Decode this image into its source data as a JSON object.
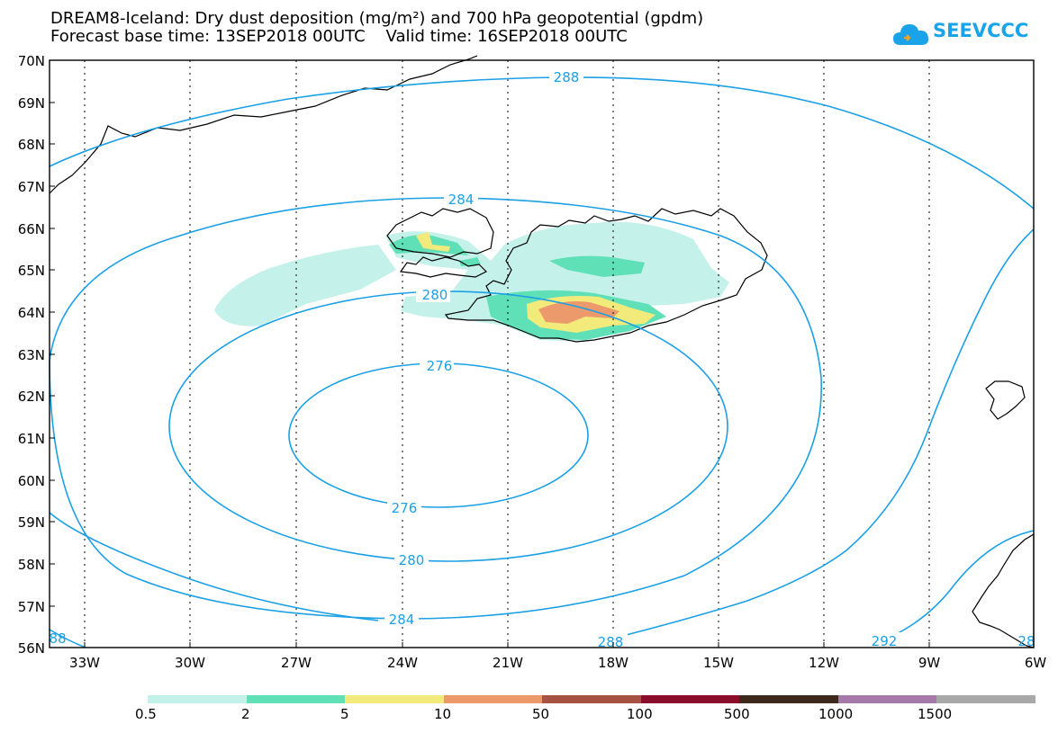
{
  "title": {
    "line1": "DREAM8-Iceland: Dry dust deposition (mg/m²) and 700 hPa geopotential (gpdm)",
    "line2": "Forecast base time: 13SEP2018 00UTC    Valid time: 16SEP2018 00UTC"
  },
  "logo": {
    "text": "SEEVCCC",
    "icon": "cloud-icon",
    "color": "#1aa3e8"
  },
  "map": {
    "lat_ticks": [
      "70N",
      "69N",
      "68N",
      "67N",
      "66N",
      "65N",
      "64N",
      "63N",
      "62N",
      "61N",
      "60N",
      "59N",
      "58N",
      "57N",
      "56N"
    ],
    "lon_ticks": [
      "33W",
      "30W",
      "27W",
      "24W",
      "21W",
      "18W",
      "15W",
      "12W",
      "9W",
      "6W"
    ],
    "contour_color": "#1ba0e6",
    "contour_labels": [
      "288",
      "284",
      "280",
      "276",
      "276",
      "280",
      "284",
      "288",
      "292",
      "88",
      "28"
    ]
  },
  "legend": {
    "colors": [
      "#c4f2ea",
      "#5fe0b6",
      "#f2ea7a",
      "#ec9a6c",
      "#a85244",
      "#8a0e2c",
      "#3e2a1c",
      "#a57aab",
      "#a8a8a8"
    ],
    "labels": [
      "0.5",
      "2",
      "5",
      "10",
      "50",
      "100",
      "500",
      "1000",
      "1500"
    ]
  }
}
